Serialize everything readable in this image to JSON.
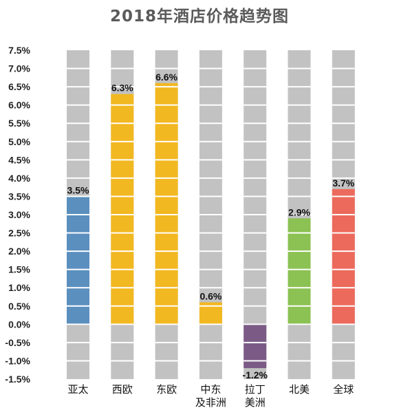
{
  "chart_data": {
    "type": "bar",
    "title": "2018年酒店价格趋势图",
    "xlabel": "",
    "ylabel": "",
    "categories": [
      [
        "亚太"
      ],
      [
        "西欧"
      ],
      [
        "东欧"
      ],
      [
        "中东",
        "及非洲"
      ],
      [
        "拉丁",
        "美洲"
      ],
      [
        "北美"
      ],
      [
        "全球"
      ]
    ],
    "values": [
      3.5,
      6.3,
      6.6,
      0.6,
      -1.2,
      2.9,
      3.7
    ],
    "value_labels": [
      "3.5%",
      "6.3%",
      "6.6%",
      "0.6%",
      "-1.2%",
      "2.9%",
      "3.7%"
    ],
    "bar_colors": [
      "#5b8fbe",
      "#f2b821",
      "#f2b821",
      "#f2b821",
      "#7b5b86",
      "#8cc153",
      "#ec6a5c"
    ],
    "background_bar_color": "#c2c2c2",
    "ylim": [
      -1.5,
      7.5
    ],
    "y_ticks": [
      "-1.5%",
      "-1.0%",
      "-0.5%",
      "0.0%",
      "0.5%",
      "1.0%",
      "1.5%",
      "2.0%",
      "2.5%",
      "3.0%",
      "3.5%",
      "4.0%",
      "4.5%",
      "5.0%",
      "5.5%",
      "6.0%",
      "6.5%",
      "7.0%",
      "7.5%"
    ],
    "grid": false,
    "legend": "none"
  }
}
